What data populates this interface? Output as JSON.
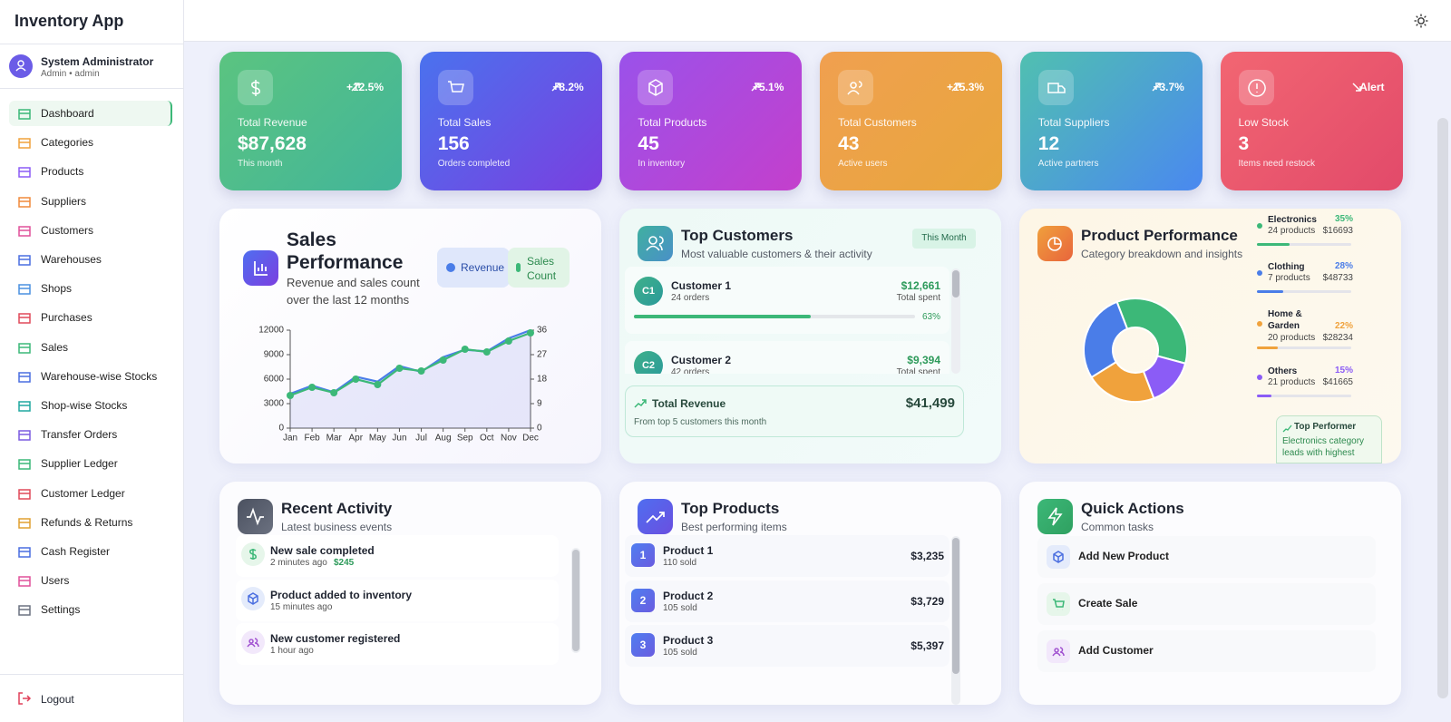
{
  "app": {
    "title": "Inventory App"
  },
  "user": {
    "name": "System Administrator",
    "role": "Admin • admin"
  },
  "nav": [
    "Dashboard",
    "Categories",
    "Products",
    "Suppliers",
    "Customers",
    "Warehouses",
    "Shops",
    "Purchases",
    "Sales",
    "Warehouse-wise Stocks",
    "Shop-wise Stocks",
    "Transfer Orders",
    "Supplier Ledger",
    "Customer Ledger",
    "Refunds & Returns",
    "Cash Register",
    "Users",
    "Settings"
  ],
  "logout": "Logout",
  "stats": [
    {
      "change": "+12.5%",
      "title": "Total Revenue",
      "value": "$87,628",
      "subtitle": "This month"
    },
    {
      "change": "+8.2%",
      "title": "Total Sales",
      "value": "156",
      "subtitle": "Orders completed"
    },
    {
      "change": "+5.1%",
      "title": "Total Products",
      "value": "45",
      "subtitle": "In inventory"
    },
    {
      "change": "+15.3%",
      "title": "Total Customers",
      "value": "43",
      "subtitle": "Active users"
    },
    {
      "change": "+3.7%",
      "title": "Total Suppliers",
      "value": "12",
      "subtitle": "Active partners"
    },
    {
      "change": "Alert",
      "title": "Low Stock",
      "value": "3",
      "subtitle": "Items need restock"
    }
  ],
  "chart_data": [
    {
      "type": "line",
      "title": "Sales Performance",
      "subtitle": "Revenue and sales count over the last 12 months",
      "categories": [
        "Jan",
        "Feb",
        "Mar",
        "Apr",
        "May",
        "Jun",
        "Jul",
        "Aug",
        "Sep",
        "Oct",
        "Nov",
        "Dec"
      ],
      "series": [
        {
          "name": "Revenue",
          "color": "#4a7de8",
          "values": [
            4200,
            5200,
            4400,
            6300,
            5700,
            7600,
            6900,
            8700,
            9600,
            9400,
            11000,
            12000
          ]
        },
        {
          "name": "Sales Count",
          "color": "#3cb878",
          "axis": "y2",
          "values": [
            12,
            15,
            13,
            18,
            16,
            22,
            21,
            25,
            29,
            28,
            32,
            35
          ]
        }
      ],
      "ylim": [
        0,
        12000
      ],
      "yticks": [
        0,
        3000,
        6000,
        9000,
        12000
      ],
      "y2lim": [
        0,
        36
      ],
      "y2ticks": [
        0,
        9,
        18,
        27,
        36
      ]
    },
    {
      "type": "pie",
      "title": "Product Performance",
      "subtitle": "Category breakdown and insights",
      "categories": [
        "Electronics",
        "Clothing",
        "Home & Garden",
        "Others"
      ],
      "values": [
        35,
        28,
        22,
        15
      ],
      "value_labels": [
        "35%",
        "28%",
        "22%",
        "15%"
      ],
      "colors": [
        "#3cb878",
        "#4a7de8",
        "#f0a23c",
        "#8b5cf6"
      ],
      "products": [
        "24 products",
        "7 products",
        "20 products",
        "21 products"
      ],
      "revenue": [
        "$16693",
        "$48733",
        "$28234",
        "$41665"
      ],
      "note_title": "Top Performer",
      "note_text": "Electronics category leads with highest"
    }
  ],
  "top_customers": {
    "title": "Top Customers",
    "subtitle": "Most valuable customers & their activity",
    "badge": "This Month",
    "items": [
      {
        "initials": "C1",
        "name": "Customer 1",
        "orders": "24 orders",
        "amount": "$12,661",
        "amount_label": "Total spent",
        "percent": "63%"
      },
      {
        "initials": "C2",
        "name": "Customer 2",
        "orders": "42 orders",
        "amount": "$9,394",
        "amount_label": "Total spent"
      }
    ],
    "total_label": "Total Revenue",
    "total_value": "$41,499",
    "total_note": "From top 5 customers this month"
  },
  "recent_activity": {
    "title": "Recent Activity",
    "subtitle": "Latest business events",
    "items": [
      {
        "text": "New sale completed",
        "time": "2 minutes ago",
        "amount": "$245"
      },
      {
        "text": "Product added to inventory",
        "time": "15 minutes ago"
      },
      {
        "text": "New customer registered",
        "time": "1 hour ago"
      }
    ]
  },
  "top_products": {
    "title": "Top Products",
    "subtitle": "Best performing items",
    "items": [
      {
        "rank": "1",
        "name": "Product 1",
        "sold": "110 sold",
        "amount": "$3,235"
      },
      {
        "rank": "2",
        "name": "Product 2",
        "sold": "105 sold",
        "amount": "$3,729"
      },
      {
        "rank": "3",
        "name": "Product 3",
        "sold": "105 sold",
        "amount": "$5,397"
      }
    ]
  },
  "quick_actions": {
    "title": "Quick Actions",
    "subtitle": "Common tasks",
    "items": [
      "Add New Product",
      "Create Sale",
      "Add Customer"
    ]
  }
}
